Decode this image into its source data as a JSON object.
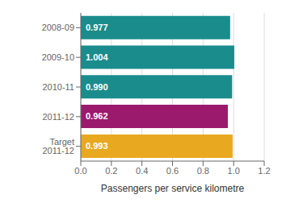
{
  "chart_data": {
    "type": "bar",
    "orientation": "horizontal",
    "categories": [
      "2008-09",
      "2009-10",
      "2010-11",
      "2011-12",
      "Target 2011-12"
    ],
    "values": [
      0.977,
      1.004,
      0.99,
      0.962,
      0.993
    ],
    "value_labels": [
      "0.977",
      "1.004",
      "0.990",
      "0.962",
      "0.993"
    ],
    "data_labels": true,
    "colors": [
      "#1a8c8c",
      "#1a8c8c",
      "#1a8c8c",
      "#9b1a6e",
      "#e8a820"
    ],
    "xlabel": "Passengers per service kilometre",
    "xlim": [
      0,
      1.2
    ],
    "xticks": [
      {
        "value": 0,
        "label": "0.0"
      },
      0.2,
      0.4,
      0.6,
      0.8,
      {
        "value": 1,
        "label": "1.0"
      },
      1.2
    ],
    "grid": true
  }
}
